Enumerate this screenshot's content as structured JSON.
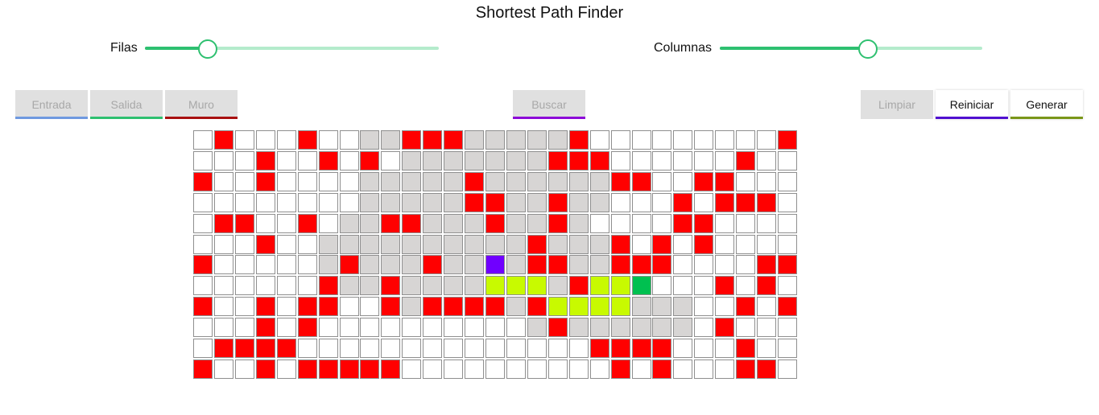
{
  "app": {
    "title": "Shortest Path Finder"
  },
  "sliders": {
    "rows": {
      "label": "Filas",
      "level": 0.21
    },
    "cols": {
      "label": "Columnas",
      "level": 0.56
    }
  },
  "buttons": {
    "entrada": {
      "label": "Entrada",
      "underline": "#6f99e0"
    },
    "salida": {
      "label": "Salida",
      "underline": "#2ec070"
    },
    "muro": {
      "label": "Muro",
      "underline": "#a81010"
    },
    "buscar": {
      "label": "Buscar",
      "underline": "#8c0ad8"
    },
    "limpiar": {
      "label": "Limpiar"
    },
    "reiniciar": {
      "label": "Reiniciar",
      "underline": "#5010d0"
    },
    "generar": {
      "label": "Generar",
      "underline": "#7a9618"
    }
  },
  "colors": {
    "wall": "#ff0000",
    "visited": "#d7d5d4",
    "path": "#c8fa00",
    "start": "#7000ff",
    "end": "#00c050",
    "empty": "#ffffff",
    "slider": "#2ec070"
  },
  "grid": {
    "legend": {
      ".": "empty",
      "W": "wall",
      "v": "visited",
      "P": "path",
      "S": "start",
      "E": "end"
    },
    "rows": [
      ".W...W..vvWWWvvvvvW.........W",
      "...W..W.W.vvvvvvvWWW......W..",
      "W..W....vvvvvWvvvvvvWW..WW...",
      "........vvvvvWWvvWvv...W.WWW.",
      ".WW..W.vvWWvvvWvvWv....WW....",
      "...W..vvvvvvvvvvWvvvW.W.W....",
      "W.....vWvvvWvvSvWWvvWWW....WW",
      "......WvvWvvvvPPPvWPPE...W.W.",
      "W..W.WW..WvWWWWvWPPPPvvv..W.W",
      "...W.W..........vWvvvvvv.W...",
      ".WWWW..............WWWW...W..",
      "W..W.WWWWW..........W.W...WW."
    ]
  }
}
